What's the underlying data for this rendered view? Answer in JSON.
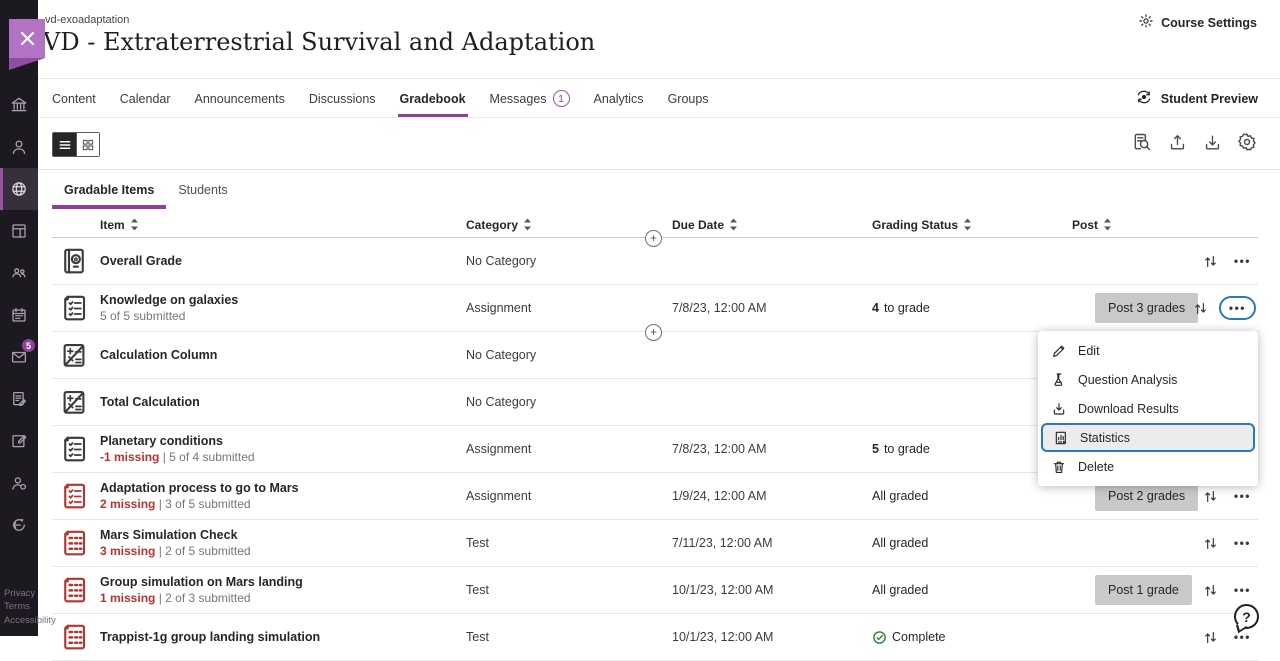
{
  "header": {
    "course_id": "vd-exoadaptation",
    "course_title": "VD - Extraterrestrial Survival and Adaptation",
    "course_settings": "Course Settings"
  },
  "nav": {
    "tabs": [
      {
        "label": "Content"
      },
      {
        "label": "Calendar"
      },
      {
        "label": "Announcements"
      },
      {
        "label": "Discussions"
      },
      {
        "label": "Gradebook",
        "active": true
      },
      {
        "label": "Messages",
        "badge": "1"
      },
      {
        "label": "Analytics"
      },
      {
        "label": "Groups"
      }
    ],
    "student_preview": "Student Preview"
  },
  "sidebar": {
    "items": [
      {
        "icon": "institution"
      },
      {
        "icon": "profile"
      },
      {
        "icon": "courses",
        "active": true
      },
      {
        "icon": "organizations"
      },
      {
        "icon": "groups"
      },
      {
        "icon": "calendar"
      },
      {
        "icon": "messages",
        "badge": "5"
      },
      {
        "icon": "grades"
      },
      {
        "icon": "tools"
      },
      {
        "icon": "directory"
      },
      {
        "icon": "sign-out"
      }
    ],
    "footer_links": [
      "Privacy",
      "Terms",
      "Accessibility"
    ]
  },
  "toolbar": {
    "views": [
      {
        "icon": "list-view",
        "active": true
      },
      {
        "icon": "grid-view",
        "active": false
      }
    ],
    "actions": [
      {
        "icon": "search-records"
      },
      {
        "icon": "upload"
      },
      {
        "icon": "download"
      },
      {
        "icon": "settings"
      }
    ]
  },
  "subtabs": [
    {
      "label": "Gradable Items",
      "active": true
    },
    {
      "label": "Students"
    }
  ],
  "table": {
    "columns": [
      "Item",
      "Category",
      "Due Date",
      "Grading Status",
      "Post"
    ],
    "sub_separator": " | ",
    "rows": [
      {
        "name": "Overall Grade",
        "icon": "overall-grade",
        "icon_color": "dark",
        "category": "No Category",
        "due": "",
        "status": "",
        "post": ""
      },
      {
        "name": "Knowledge on galaxies",
        "submitted": "5 of 5 submitted",
        "icon": "assignment",
        "icon_color": "dark",
        "category": "Assignment",
        "due": "7/8/23, 12:00 AM",
        "status_bold": "4",
        "status": "to grade",
        "post": "Post 3 grades",
        "more_focused": true
      },
      {
        "name": "Calculation Column",
        "icon": "calculation",
        "icon_color": "dark",
        "category": "No Category",
        "due": "",
        "status": "",
        "post": ""
      },
      {
        "name": "Total Calculation",
        "icon": "calculation",
        "icon_color": "dark",
        "category": "No Category",
        "due": "",
        "status": "",
        "post": ""
      },
      {
        "name": "Planetary conditions",
        "missing": "-1 missing",
        "submitted": "5 of 4 submitted",
        "icon": "assignment",
        "icon_color": "dark",
        "category": "Assignment",
        "due": "7/8/23, 12:00 AM",
        "status_bold": "5",
        "status": "to grade",
        "post": ""
      },
      {
        "name": "Adaptation process to go to Mars",
        "missing": "2 missing",
        "submitted": "3 of 5 submitted",
        "icon": "assignment",
        "icon_color": "red",
        "category": "Assignment",
        "due": "1/9/24, 12:00 AM",
        "status": "All graded",
        "post": "Post 2 grades"
      },
      {
        "name": "Mars Simulation Check",
        "missing": "3 missing",
        "submitted": "2 of 5 submitted",
        "icon": "test",
        "icon_color": "red",
        "category": "Test",
        "due": "7/11/23, 12:00 AM",
        "status": "All graded",
        "post": ""
      },
      {
        "name": "Group simulation on Mars landing",
        "missing": "1 missing",
        "submitted": "2 of 3 submitted",
        "icon": "test",
        "icon_color": "red",
        "category": "Test",
        "due": "10/1/23, 12:00 AM",
        "status": "All graded",
        "post": "Post 1 grade"
      },
      {
        "name": "Trappist-1g group landing simulation",
        "icon": "test",
        "icon_color": "red",
        "category": "Test",
        "due": "10/1/23, 12:00 AM",
        "status": "Complete",
        "status_icon": "check-circle",
        "post": ""
      }
    ]
  },
  "context_menu": {
    "items": [
      {
        "label": "Edit",
        "icon": "edit"
      },
      {
        "label": "Question Analysis",
        "icon": "question-analysis"
      },
      {
        "label": "Download Results",
        "icon": "download-results"
      },
      {
        "label": "Statistics",
        "icon": "statistics",
        "highlighted": true
      },
      {
        "label": "Delete",
        "icon": "delete"
      }
    ]
  },
  "help": {
    "label": "?"
  },
  "colors": {
    "accent_purple": "#8e4198",
    "badge_purple": "#b273c4",
    "alert_red": "#b5342e",
    "focus_blue": "#2779c4",
    "success_green": "#2e7d32",
    "sidebar_bg": "#1d1920"
  }
}
